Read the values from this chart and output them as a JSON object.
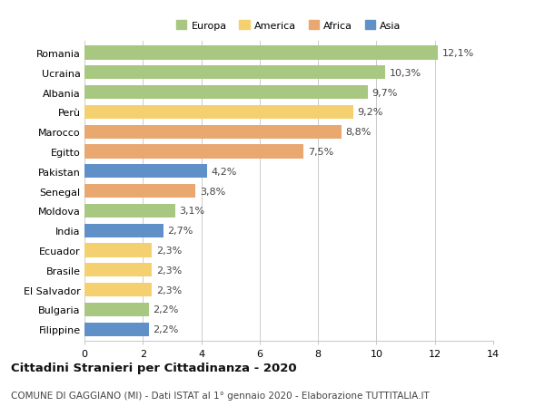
{
  "countries": [
    "Romania",
    "Ucraina",
    "Albania",
    "Perù",
    "Marocco",
    "Egitto",
    "Pakistan",
    "Senegal",
    "Moldova",
    "India",
    "Ecuador",
    "Brasile",
    "El Salvador",
    "Bulgaria",
    "Filippine"
  ],
  "values": [
    12.1,
    10.3,
    9.7,
    9.2,
    8.8,
    7.5,
    4.2,
    3.8,
    3.1,
    2.7,
    2.3,
    2.3,
    2.3,
    2.2,
    2.2
  ],
  "continents": [
    "Europa",
    "Europa",
    "Europa",
    "America",
    "Africa",
    "Africa",
    "Asia",
    "Africa",
    "Europa",
    "Asia",
    "America",
    "America",
    "America",
    "Europa",
    "Asia"
  ],
  "continent_colors": {
    "Europa": "#a8c882",
    "America": "#f5d070",
    "Africa": "#e8a870",
    "Asia": "#6090c8"
  },
  "legend_order": [
    "Europa",
    "America",
    "Africa",
    "Asia"
  ],
  "xlim": [
    0,
    14
  ],
  "xticks": [
    0,
    2,
    4,
    6,
    8,
    10,
    12,
    14
  ],
  "title": "Cittadini Stranieri per Cittadinanza - 2020",
  "subtitle": "COMUNE DI GAGGIANO (MI) - Dati ISTAT al 1° gennaio 2020 - Elaborazione TUTTITALIA.IT",
  "bg_color": "#ffffff",
  "grid_color": "#cccccc",
  "bar_height": 0.7,
  "label_fontsize": 8,
  "tick_fontsize": 8,
  "title_fontsize": 9.5,
  "subtitle_fontsize": 7.5
}
